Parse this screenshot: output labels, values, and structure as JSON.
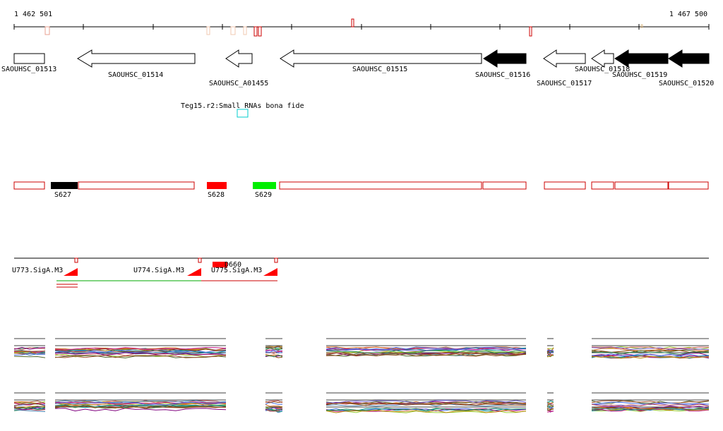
{
  "coords": {
    "start": "1 462 501",
    "end": "1 467 500"
  },
  "genes": [
    {
      "name": "SAOUHSC_01513",
      "dir": "none",
      "filled": false,
      "label_row": 0
    },
    {
      "name": "SAOUHSC_01514",
      "dir": "left",
      "filled": false,
      "label_row": 1
    },
    {
      "name": "SAOUHSC_A01455",
      "dir": "left",
      "filled": false,
      "label_row": 2
    },
    {
      "name": "SAOUHSC_01515",
      "dir": "left",
      "filled": false,
      "label_row": 0
    },
    {
      "name": "SAOUHSC_01516",
      "dir": "left",
      "filled": true,
      "label_row": 1
    },
    {
      "name": "SAOUHSC_01517",
      "dir": "left",
      "filled": false,
      "label_row": 2
    },
    {
      "name": "SAOUHSC_01518",
      "dir": "left",
      "filled": false,
      "label_row": 0
    },
    {
      "name": "SAOUHSC_01519",
      "dir": "left",
      "filled": true,
      "label_row": 1
    },
    {
      "name": "SAOUHSC_01520",
      "dir": "left",
      "filled": true,
      "label_row": 2
    }
  ],
  "srna_track": {
    "label": "Teg15.r2:Small RNAs bona fide"
  },
  "segments": [
    {
      "name": "S627",
      "color": "#000000"
    },
    {
      "name": "S628",
      "color": "#ff0000"
    },
    {
      "name": "S629",
      "color": "#00ee00"
    }
  ],
  "promoters": [
    {
      "name": "U773.SigA.M3"
    },
    {
      "name": "U774.SigA.M3"
    },
    {
      "name": "U775.SigA.M3"
    },
    {
      "name": "D660"
    }
  ],
  "colors": {
    "feature_outline": "#cc0000",
    "srna_box": "#00cccc",
    "green_line": "#00aa00"
  }
}
